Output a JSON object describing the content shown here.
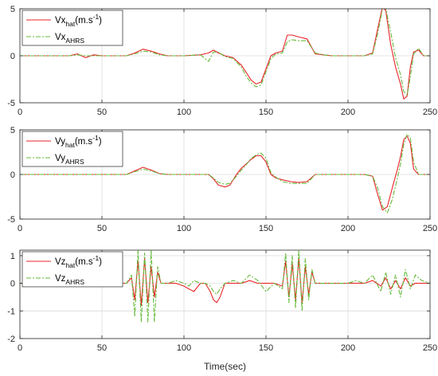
{
  "colors": {
    "estimate": "#e8262a",
    "ahrs": "#66bb3a",
    "grid": "#dcdcdc",
    "axis": "#262626"
  },
  "xlabel": "Time(sec)",
  "chart_data": [
    {
      "type": "line",
      "xlim": [
        0,
        250
      ],
      "ylim": [
        -5,
        5
      ],
      "xticks": [
        0,
        50,
        100,
        150,
        200,
        250
      ],
      "yticks": [
        -5,
        0,
        5
      ],
      "grid": true,
      "legend_position": "top-left",
      "legend": [
        {
          "base": "Vx",
          "sub": "hat",
          "suffix": "(m.s",
          "sup": "-1",
          "tail": ")"
        },
        {
          "base": "Vx",
          "sub": "AHRS",
          "suffix": "",
          "sup": "",
          "tail": ""
        }
      ],
      "series": [
        {
          "x": [
            0,
            30,
            35,
            40,
            45,
            50,
            55,
            60,
            65,
            70,
            75,
            80,
            85,
            90,
            100,
            110,
            115,
            118,
            121,
            125,
            130,
            135,
            138,
            141,
            144,
            147,
            150,
            153,
            156,
            160,
            163,
            166,
            170,
            175,
            180,
            185,
            190,
            200,
            210,
            215,
            218,
            221,
            223,
            226,
            229,
            232,
            234,
            236,
            238,
            240,
            243,
            246,
            250
          ],
          "y": [
            0,
            0,
            0.2,
            -0.2,
            0.1,
            0,
            0,
            0,
            0,
            0.3,
            0.7,
            0.5,
            0.2,
            0,
            0,
            0.1,
            0.3,
            0.6,
            0.3,
            0,
            -0.2,
            -1.0,
            -1.8,
            -2.6,
            -3.0,
            -2.8,
            -1.4,
            0,
            0.3,
            0.5,
            2.2,
            2.2,
            2.0,
            1.8,
            0.2,
            0.1,
            0,
            0,
            0,
            0.3,
            2.8,
            5.2,
            4.8,
            1.2,
            -1.2,
            -3.0,
            -4.6,
            -4.3,
            -1.2,
            0.4,
            0.6,
            0,
            0
          ]
        },
        {
          "x": [
            0,
            30,
            35,
            40,
            45,
            50,
            55,
            60,
            65,
            70,
            75,
            80,
            85,
            90,
            100,
            110,
            115,
            118,
            121,
            125,
            130,
            135,
            138,
            141,
            144,
            147,
            150,
            153,
            156,
            160,
            163,
            166,
            170,
            175,
            180,
            185,
            190,
            200,
            210,
            215,
            218,
            221,
            223,
            226,
            229,
            232,
            234,
            236,
            238,
            240,
            243,
            246,
            250
          ],
          "y": [
            0,
            0,
            0.1,
            0,
            0,
            0,
            0,
            0,
            0,
            0.2,
            0.5,
            0.4,
            0.1,
            0,
            0,
            0.1,
            -0.6,
            0.4,
            0.4,
            -0.1,
            -0.3,
            -1.2,
            -2.2,
            -2.9,
            -3.3,
            -3.1,
            -1.7,
            -0.3,
            0.2,
            0.3,
            1.5,
            1.7,
            1.6,
            1.6,
            0.3,
            0.1,
            0,
            0,
            0,
            0.2,
            2.3,
            5.0,
            5.0,
            2.5,
            -0.2,
            -2.0,
            -3.8,
            -4.2,
            -2.2,
            0.2,
            0.8,
            0,
            0
          ]
        }
      ]
    },
    {
      "type": "line",
      "xlim": [
        0,
        250
      ],
      "ylim": [
        -5,
        5
      ],
      "xticks": [
        0,
        50,
        100,
        150,
        200,
        250
      ],
      "yticks": [
        -5,
        0,
        5
      ],
      "grid": true,
      "legend_position": "top-left",
      "legend": [
        {
          "base": "Vy",
          "sub": "hat",
          "suffix": "(m.s",
          "sup": "-1",
          "tail": ")"
        },
        {
          "base": "Vy",
          "sub": "AHRS",
          "suffix": "",
          "sup": "",
          "tail": ""
        }
      ],
      "series": [
        {
          "x": [
            0,
            40,
            45,
            50,
            55,
            60,
            65,
            70,
            75,
            80,
            85,
            90,
            100,
            110,
            115,
            118,
            121,
            125,
            128,
            132,
            135,
            138,
            141,
            144,
            147,
            150,
            153,
            156,
            160,
            165,
            170,
            175,
            180,
            185,
            190,
            200,
            210,
            215,
            218,
            221,
            224,
            227,
            230,
            232,
            234,
            236,
            238,
            240,
            243,
            246,
            250
          ],
          "y": [
            0,
            0,
            0,
            0,
            0,
            0,
            0,
            0.4,
            0.8,
            0.5,
            0.1,
            0,
            0,
            0,
            0,
            -0.5,
            -1.2,
            -1.4,
            -1.2,
            0,
            0.7,
            1.2,
            1.7,
            2.1,
            2.1,
            1.4,
            0,
            -0.4,
            -0.6,
            -0.8,
            -0.9,
            -0.8,
            0,
            0,
            0,
            0,
            0,
            -0.2,
            -2.2,
            -4.0,
            -3.6,
            -1.5,
            0.5,
            2.0,
            3.9,
            4.3,
            3.5,
            0.6,
            0,
            0,
            0
          ]
        },
        {
          "x": [
            0,
            40,
            45,
            50,
            55,
            60,
            65,
            70,
            75,
            80,
            85,
            90,
            100,
            110,
            115,
            118,
            121,
            125,
            128,
            132,
            135,
            138,
            141,
            144,
            147,
            150,
            153,
            156,
            160,
            165,
            170,
            175,
            180,
            185,
            190,
            200,
            210,
            215,
            218,
            221,
            224,
            227,
            230,
            232,
            234,
            236,
            238,
            240,
            243,
            246,
            250
          ],
          "y": [
            0,
            0,
            0,
            0,
            0,
            0,
            0,
            0.3,
            0.6,
            0.4,
            0.1,
            0,
            0,
            0,
            0,
            -0.4,
            -0.9,
            -1.1,
            -1.0,
            -0.2,
            0.5,
            1.1,
            1.8,
            2.2,
            2.4,
            1.8,
            0.2,
            -0.3,
            -0.8,
            -1.0,
            -1.0,
            -1.0,
            0,
            0,
            0,
            0,
            0,
            -0.2,
            -1.5,
            -3.6,
            -4.3,
            -2.8,
            -0.5,
            1.2,
            3.4,
            4.5,
            4.1,
            1.4,
            0,
            0,
            0
          ]
        }
      ]
    },
    {
      "type": "line",
      "xlim": [
        0,
        250
      ],
      "ylim": [
        -2,
        1.2
      ],
      "xticks": [
        0,
        50,
        100,
        150,
        200,
        250
      ],
      "yticks": [
        -2,
        -1,
        0,
        1
      ],
      "grid": true,
      "legend_position": "top-left",
      "legend": [
        {
          "base": "Vz",
          "sub": "hat",
          "suffix": "(m.s",
          "sup": "-1",
          "tail": ")"
        },
        {
          "base": "Vz",
          "sub": "AHRS",
          "suffix": "",
          "sup": "",
          "tail": ""
        }
      ],
      "series": [
        {
          "x": [
            0,
            40,
            50,
            60,
            65,
            68,
            70,
            72,
            74,
            76,
            78,
            80,
            82,
            84,
            86,
            90,
            95,
            100,
            103,
            106,
            110,
            113,
            116,
            118,
            120,
            122,
            125,
            130,
            135,
            140,
            145,
            150,
            155,
            160,
            162,
            164,
            166,
            168,
            170,
            172,
            174,
            176,
            178,
            180,
            185,
            190,
            195,
            200,
            205,
            210,
            215,
            220,
            223,
            226,
            229,
            232,
            235,
            238,
            241,
            245,
            250
          ],
          "y": [
            0,
            0,
            0,
            0,
            0,
            0.2,
            -0.6,
            0.8,
            -0.8,
            0.9,
            -0.7,
            0.6,
            -0.5,
            0.4,
            0,
            0,
            0,
            -0.1,
            -0.2,
            -0.3,
            0,
            0,
            -0.3,
            -0.6,
            -0.7,
            -0.5,
            0,
            0,
            0,
            0.1,
            0,
            0,
            0,
            -0.1,
            0.8,
            -0.5,
            0.7,
            -0.6,
            0.9,
            -0.7,
            0.6,
            -0.4,
            0.4,
            0,
            0,
            0,
            0,
            0,
            0,
            0,
            0.1,
            -0.1,
            0.2,
            -0.2,
            0.1,
            -0.2,
            0.2,
            -0.1,
            0,
            0,
            0
          ]
        },
        {
          "x": [
            0,
            40,
            50,
            60,
            65,
            68,
            70,
            72,
            74,
            76,
            78,
            80,
            82,
            84,
            86,
            90,
            95,
            100,
            103,
            106,
            110,
            113,
            116,
            118,
            120,
            122,
            125,
            130,
            135,
            140,
            145,
            150,
            155,
            160,
            162,
            164,
            166,
            168,
            170,
            172,
            174,
            176,
            178,
            180,
            185,
            190,
            195,
            200,
            205,
            210,
            215,
            220,
            223,
            226,
            229,
            232,
            235,
            238,
            241,
            245,
            250
          ],
          "y": [
            0,
            0,
            0,
            0,
            0,
            0.3,
            -1.2,
            1.2,
            -1.4,
            1.1,
            -1.4,
            1.2,
            -1.4,
            0.6,
            0,
            0,
            0.1,
            0,
            -0.1,
            0.1,
            0,
            0,
            -0.1,
            -0.3,
            -0.4,
            -0.2,
            0,
            0.1,
            0,
            0.3,
            0.1,
            -0.3,
            0,
            -0.2,
            1.1,
            -0.7,
            1.0,
            -0.9,
            1.2,
            -1.0,
            0.9,
            -0.6,
            0.5,
            0,
            0,
            0,
            0,
            0,
            0.1,
            0,
            0.3,
            -0.3,
            0.4,
            -0.4,
            0.3,
            -0.5,
            0.5,
            -0.2,
            0.3,
            0.1,
            0
          ]
        }
      ]
    }
  ]
}
